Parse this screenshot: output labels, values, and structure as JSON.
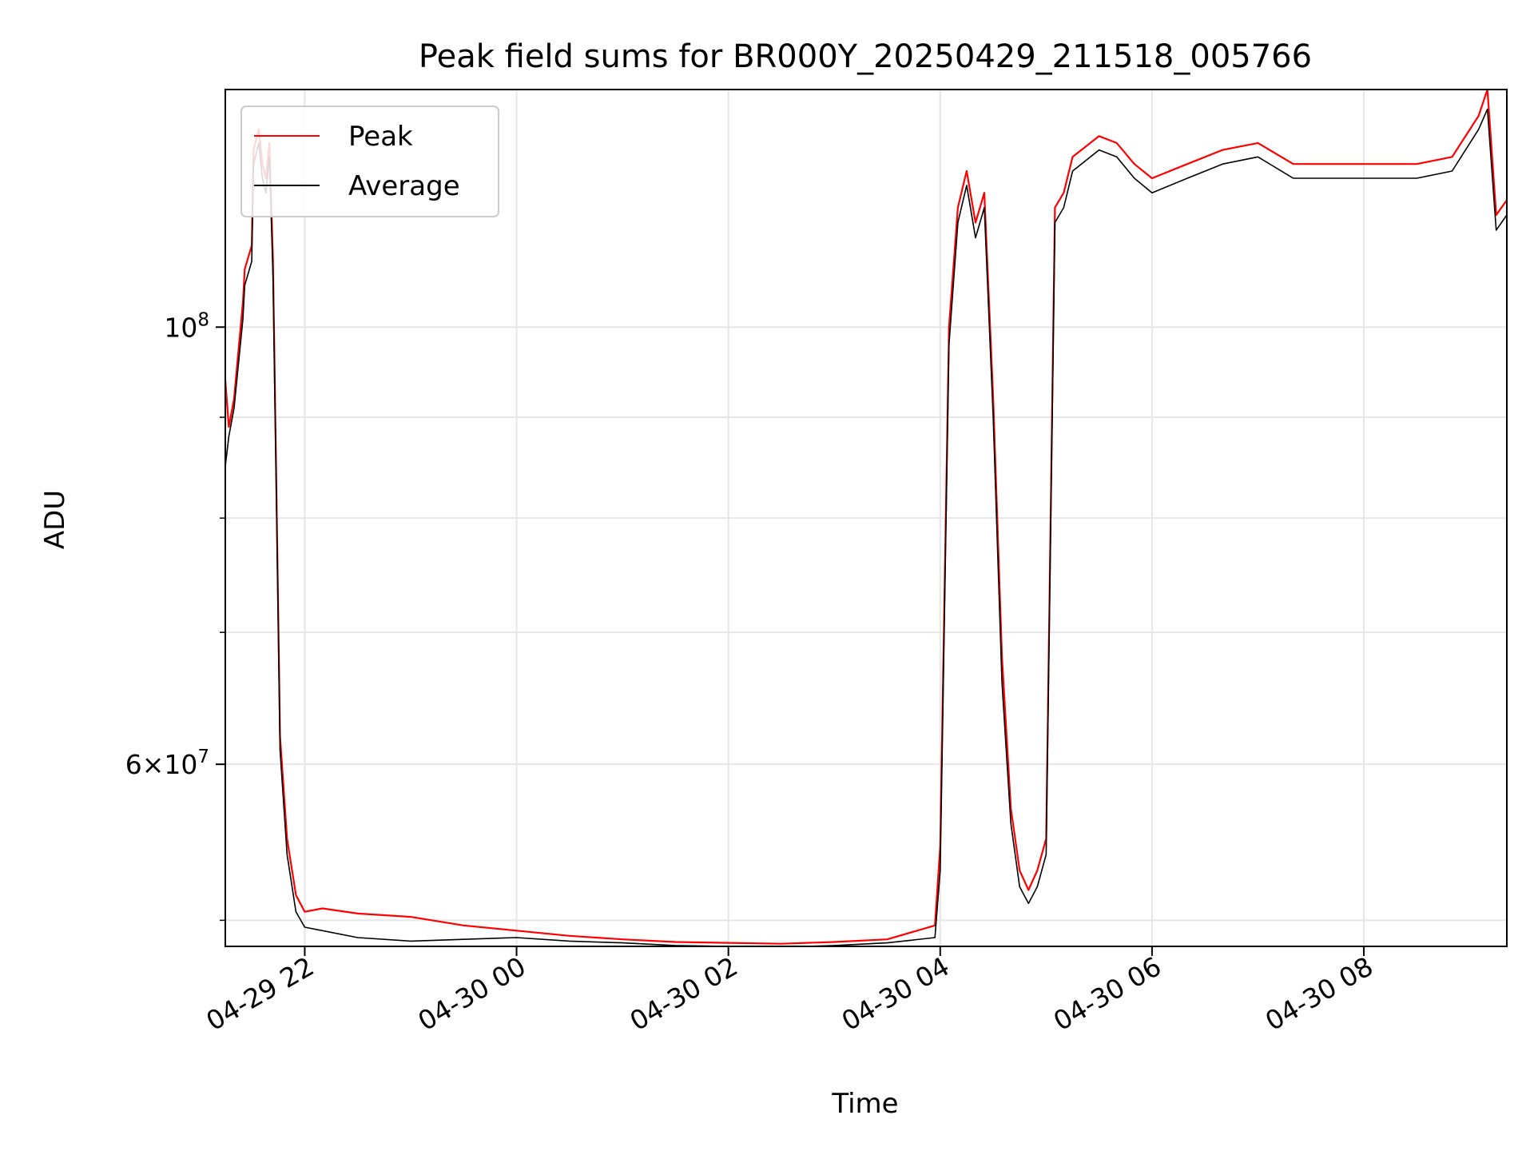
{
  "chart_data": {
    "type": "line",
    "title": "Peak field sums for BR000Y_20250429_211518_005766",
    "xlabel": "Time",
    "ylabel": "ADU",
    "xlim": [
      "2025-04-29 21:15",
      "2025-04-30 09:21"
    ],
    "ylim": [
      48500000,
      132000000
    ],
    "y_scale": "log",
    "grid": true,
    "legend_position": "upper-left",
    "x_ticks": [
      {
        "value": "2025-04-29 22:00",
        "label": "04-29 22"
      },
      {
        "value": "2025-04-30 00:00",
        "label": "04-30 00"
      },
      {
        "value": "2025-04-30 02:00",
        "label": "04-30 02"
      },
      {
        "value": "2025-04-30 04:00",
        "label": "04-30 04"
      },
      {
        "value": "2025-04-30 06:00",
        "label": "04-30 06"
      },
      {
        "value": "2025-04-30 08:00",
        "label": "04-30 08"
      }
    ],
    "y_ticks": [
      {
        "value": 100000000,
        "base": "10",
        "exp": "8"
      },
      {
        "value": 60000000,
        "mant": "6",
        "base": "10",
        "exp": "7"
      }
    ],
    "y_minor_ticks": [
      50000000,
      70000000,
      80000000,
      90000000
    ],
    "series": [
      {
        "name": "Peak",
        "color": "#ff0000",
        "x": [
          "2025-04-29 21:15",
          "2025-04-29 21:17",
          "2025-04-29 21:20",
          "2025-04-29 21:25",
          "2025-04-29 21:26",
          "2025-04-29 21:30",
          "2025-04-29 21:31",
          "2025-04-29 21:34",
          "2025-04-29 21:36",
          "2025-04-29 21:38",
          "2025-04-29 21:40",
          "2025-04-29 21:42",
          "2025-04-29 21:44",
          "2025-04-29 21:46",
          "2025-04-29 21:50",
          "2025-04-29 21:55",
          "2025-04-29 22:00",
          "2025-04-29 22:10",
          "2025-04-29 22:30",
          "2025-04-29 23:00",
          "2025-04-29 23:30",
          "2025-04-30 00:00",
          "2025-04-30 00:30",
          "2025-04-30 01:00",
          "2025-04-30 01:30",
          "2025-04-30 02:00",
          "2025-04-30 02:30",
          "2025-04-30 03:00",
          "2025-04-30 03:30",
          "2025-04-30 03:57",
          "2025-04-30 04:00",
          "2025-04-30 04:05",
          "2025-04-30 04:10",
          "2025-04-30 04:15",
          "2025-04-30 04:20",
          "2025-04-30 04:25",
          "2025-04-30 04:30",
          "2025-04-30 04:35",
          "2025-04-30 04:40",
          "2025-04-30 04:45",
          "2025-04-30 04:50",
          "2025-04-30 04:55",
          "2025-04-30 05:00",
          "2025-04-30 05:05",
          "2025-04-30 05:10",
          "2025-04-30 05:15",
          "2025-04-30 05:20",
          "2025-04-30 05:30",
          "2025-04-30 05:40",
          "2025-04-30 05:50",
          "2025-04-30 06:00",
          "2025-04-30 06:20",
          "2025-04-30 06:40",
          "2025-04-30 07:00",
          "2025-04-30 07:20",
          "2025-04-30 07:40",
          "2025-04-30 08:00",
          "2025-04-30 08:30",
          "2025-04-30 08:50",
          "2025-04-30 09:05",
          "2025-04-30 09:10",
          "2025-04-30 09:15",
          "2025-04-30 09:21"
        ],
        "values": [
          94000000,
          89000000,
          92000000,
          103000000,
          107000000,
          110000000,
          123000000,
          126000000,
          121000000,
          119000000,
          124000000,
          108000000,
          82000000,
          62000000,
          55000000,
          51500000,
          50500000,
          50700000,
          50400000,
          50200000,
          49700000,
          49400000,
          49100000,
          48900000,
          48750000,
          48700000,
          48650000,
          48750000,
          48900000,
          49700000,
          54500000,
          100000000,
          115000000,
          120000000,
          113000000,
          117000000,
          92000000,
          68000000,
          57000000,
          53000000,
          51800000,
          53000000,
          55000000,
          115000000,
          117000000,
          122000000,
          123000000,
          125000000,
          124000000,
          121000000,
          119000000,
          121000000,
          123000000,
          124000000,
          121000000,
          121000000,
          121000000,
          121000000,
          122000000,
          128000000,
          132000000,
          114000000,
          116000000
        ]
      },
      {
        "name": "Average",
        "color": "#000000",
        "x": [
          "2025-04-29 21:15",
          "2025-04-29 21:17",
          "2025-04-29 21:20",
          "2025-04-29 21:25",
          "2025-04-29 21:26",
          "2025-04-29 21:30",
          "2025-04-29 21:31",
          "2025-04-29 21:34",
          "2025-04-29 21:36",
          "2025-04-29 21:38",
          "2025-04-29 21:40",
          "2025-04-29 21:42",
          "2025-04-29 21:44",
          "2025-04-29 21:46",
          "2025-04-29 21:50",
          "2025-04-29 21:55",
          "2025-04-29 22:00",
          "2025-04-29 22:10",
          "2025-04-29 22:30",
          "2025-04-29 23:00",
          "2025-04-29 23:30",
          "2025-04-30 00:00",
          "2025-04-30 00:30",
          "2025-04-30 01:00",
          "2025-04-30 01:30",
          "2025-04-30 02:00",
          "2025-04-30 02:30",
          "2025-04-30 03:00",
          "2025-04-30 03:30",
          "2025-04-30 03:57",
          "2025-04-30 04:00",
          "2025-04-30 04:05",
          "2025-04-30 04:10",
          "2025-04-30 04:15",
          "2025-04-30 04:20",
          "2025-04-30 04:25",
          "2025-04-30 04:30",
          "2025-04-30 04:35",
          "2025-04-30 04:40",
          "2025-04-30 04:45",
          "2025-04-30 04:50",
          "2025-04-30 04:55",
          "2025-04-30 05:00",
          "2025-04-30 05:05",
          "2025-04-30 05:10",
          "2025-04-30 05:15",
          "2025-04-30 05:20",
          "2025-04-30 05:30",
          "2025-04-30 05:40",
          "2025-04-30 05:50",
          "2025-04-30 06:00",
          "2025-04-30 06:20",
          "2025-04-30 06:40",
          "2025-04-30 07:00",
          "2025-04-30 07:20",
          "2025-04-30 07:40",
          "2025-04-30 08:00",
          "2025-04-30 08:30",
          "2025-04-30 08:50",
          "2025-04-30 09:05",
          "2025-04-30 09:10",
          "2025-04-30 09:15",
          "2025-04-30 09:21"
        ],
        "values": [
          85000000,
          88000000,
          91000000,
          101000000,
          105000000,
          108000000,
          121000000,
          124000000,
          119000000,
          117000000,
          122000000,
          106000000,
          81000000,
          61000000,
          54000000,
          50500000,
          49600000,
          49400000,
          49000000,
          48800000,
          48900000,
          49000000,
          48800000,
          48700000,
          48550000,
          48500000,
          48450000,
          48550000,
          48700000,
          49000000,
          53000000,
          98000000,
          113000000,
          118000000,
          111000000,
          115000000,
          90000000,
          66000000,
          56000000,
          52000000,
          51000000,
          52000000,
          54000000,
          113000000,
          115000000,
          120000000,
          121000000,
          123000000,
          122000000,
          119000000,
          117000000,
          119000000,
          121000000,
          122000000,
          119000000,
          119000000,
          119000000,
          119000000,
          120000000,
          126000000,
          129000000,
          112000000,
          114000000
        ]
      }
    ]
  }
}
